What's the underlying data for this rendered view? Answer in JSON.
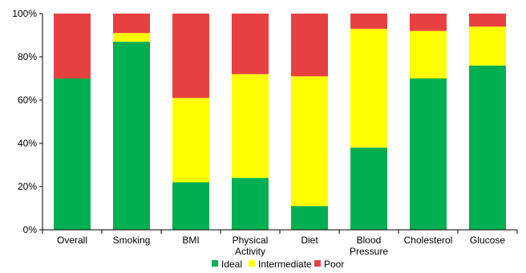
{
  "chart_data": {
    "type": "bar",
    "stacked": true,
    "categories": [
      "Overall",
      "Smoking",
      "BMI",
      "Physical Activity",
      "Diet",
      "Blood Pressure",
      "Cholesterol",
      "Glucose"
    ],
    "series": [
      {
        "name": "Ideal",
        "color": "#00b050",
        "values": [
          70,
          87,
          22,
          24,
          11,
          38,
          70,
          76
        ]
      },
      {
        "name": "Intermediate",
        "color": "#ffff00",
        "values": [
          0,
          4,
          39,
          48,
          60,
          55,
          22,
          18
        ]
      },
      {
        "name": "Poor",
        "color": "#e84040",
        "values": [
          30,
          9,
          39,
          28,
          29,
          7,
          8,
          6
        ]
      }
    ],
    "ylim": [
      0,
      100
    ],
    "yticks": [
      "0%",
      "20%",
      "40%",
      "60%",
      "80%",
      "100%"
    ],
    "legend_position": "bottom",
    "grid": false
  }
}
